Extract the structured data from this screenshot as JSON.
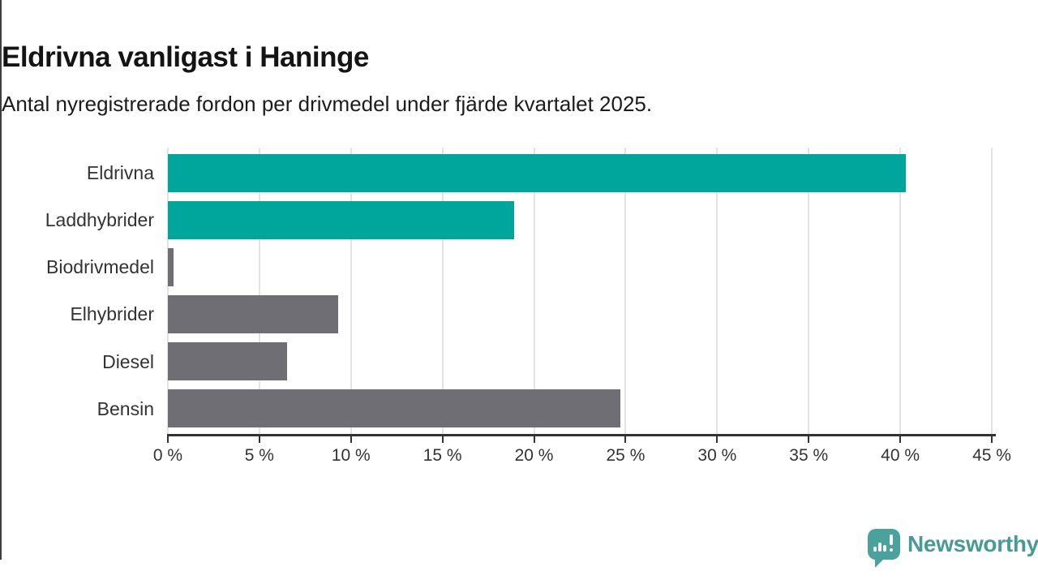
{
  "header": {
    "title": "Eldrivna vanligast i Haninge",
    "subtitle": "Antal nyregistrerade fordon per drivmedel under fjärde kvartalet 2025."
  },
  "chart_data": {
    "type": "bar",
    "orientation": "horizontal",
    "title": "Eldrivna vanligast i Haninge",
    "subtitle": "Antal nyregistrerade fordon per drivmedel under fjärde kvartalet 2025.",
    "categories": [
      "Eldrivna",
      "Laddhybrider",
      "Biodrivmedel",
      "Elhybrider",
      "Diesel",
      "Bensin"
    ],
    "values": [
      40.3,
      18.9,
      0.3,
      9.3,
      6.5,
      24.7
    ],
    "unit": "%",
    "bar_colors": [
      "#00a59c",
      "#00a59c",
      "#6e6e74",
      "#6e6e74",
      "#6e6e74",
      "#6e6e74"
    ],
    "xlim": [
      0,
      45
    ],
    "x_ticks": [
      0,
      5,
      10,
      15,
      20,
      25,
      30,
      35,
      40,
      45
    ],
    "x_tick_suffix": " %",
    "grid": "vertical",
    "legend": "none"
  },
  "footer": {
    "brand": "Newsworthy",
    "logo_icon": "bar-chart-speech-bubble-icon"
  },
  "colors": {
    "accent_teal": "#00a59c",
    "neutral_gray": "#6e6e74",
    "brand_teal": "#4ba29c",
    "brand_text_teal": "#489a94",
    "axis": "#333333",
    "gridline": "#e3e3e3",
    "background": "#ffffff"
  }
}
